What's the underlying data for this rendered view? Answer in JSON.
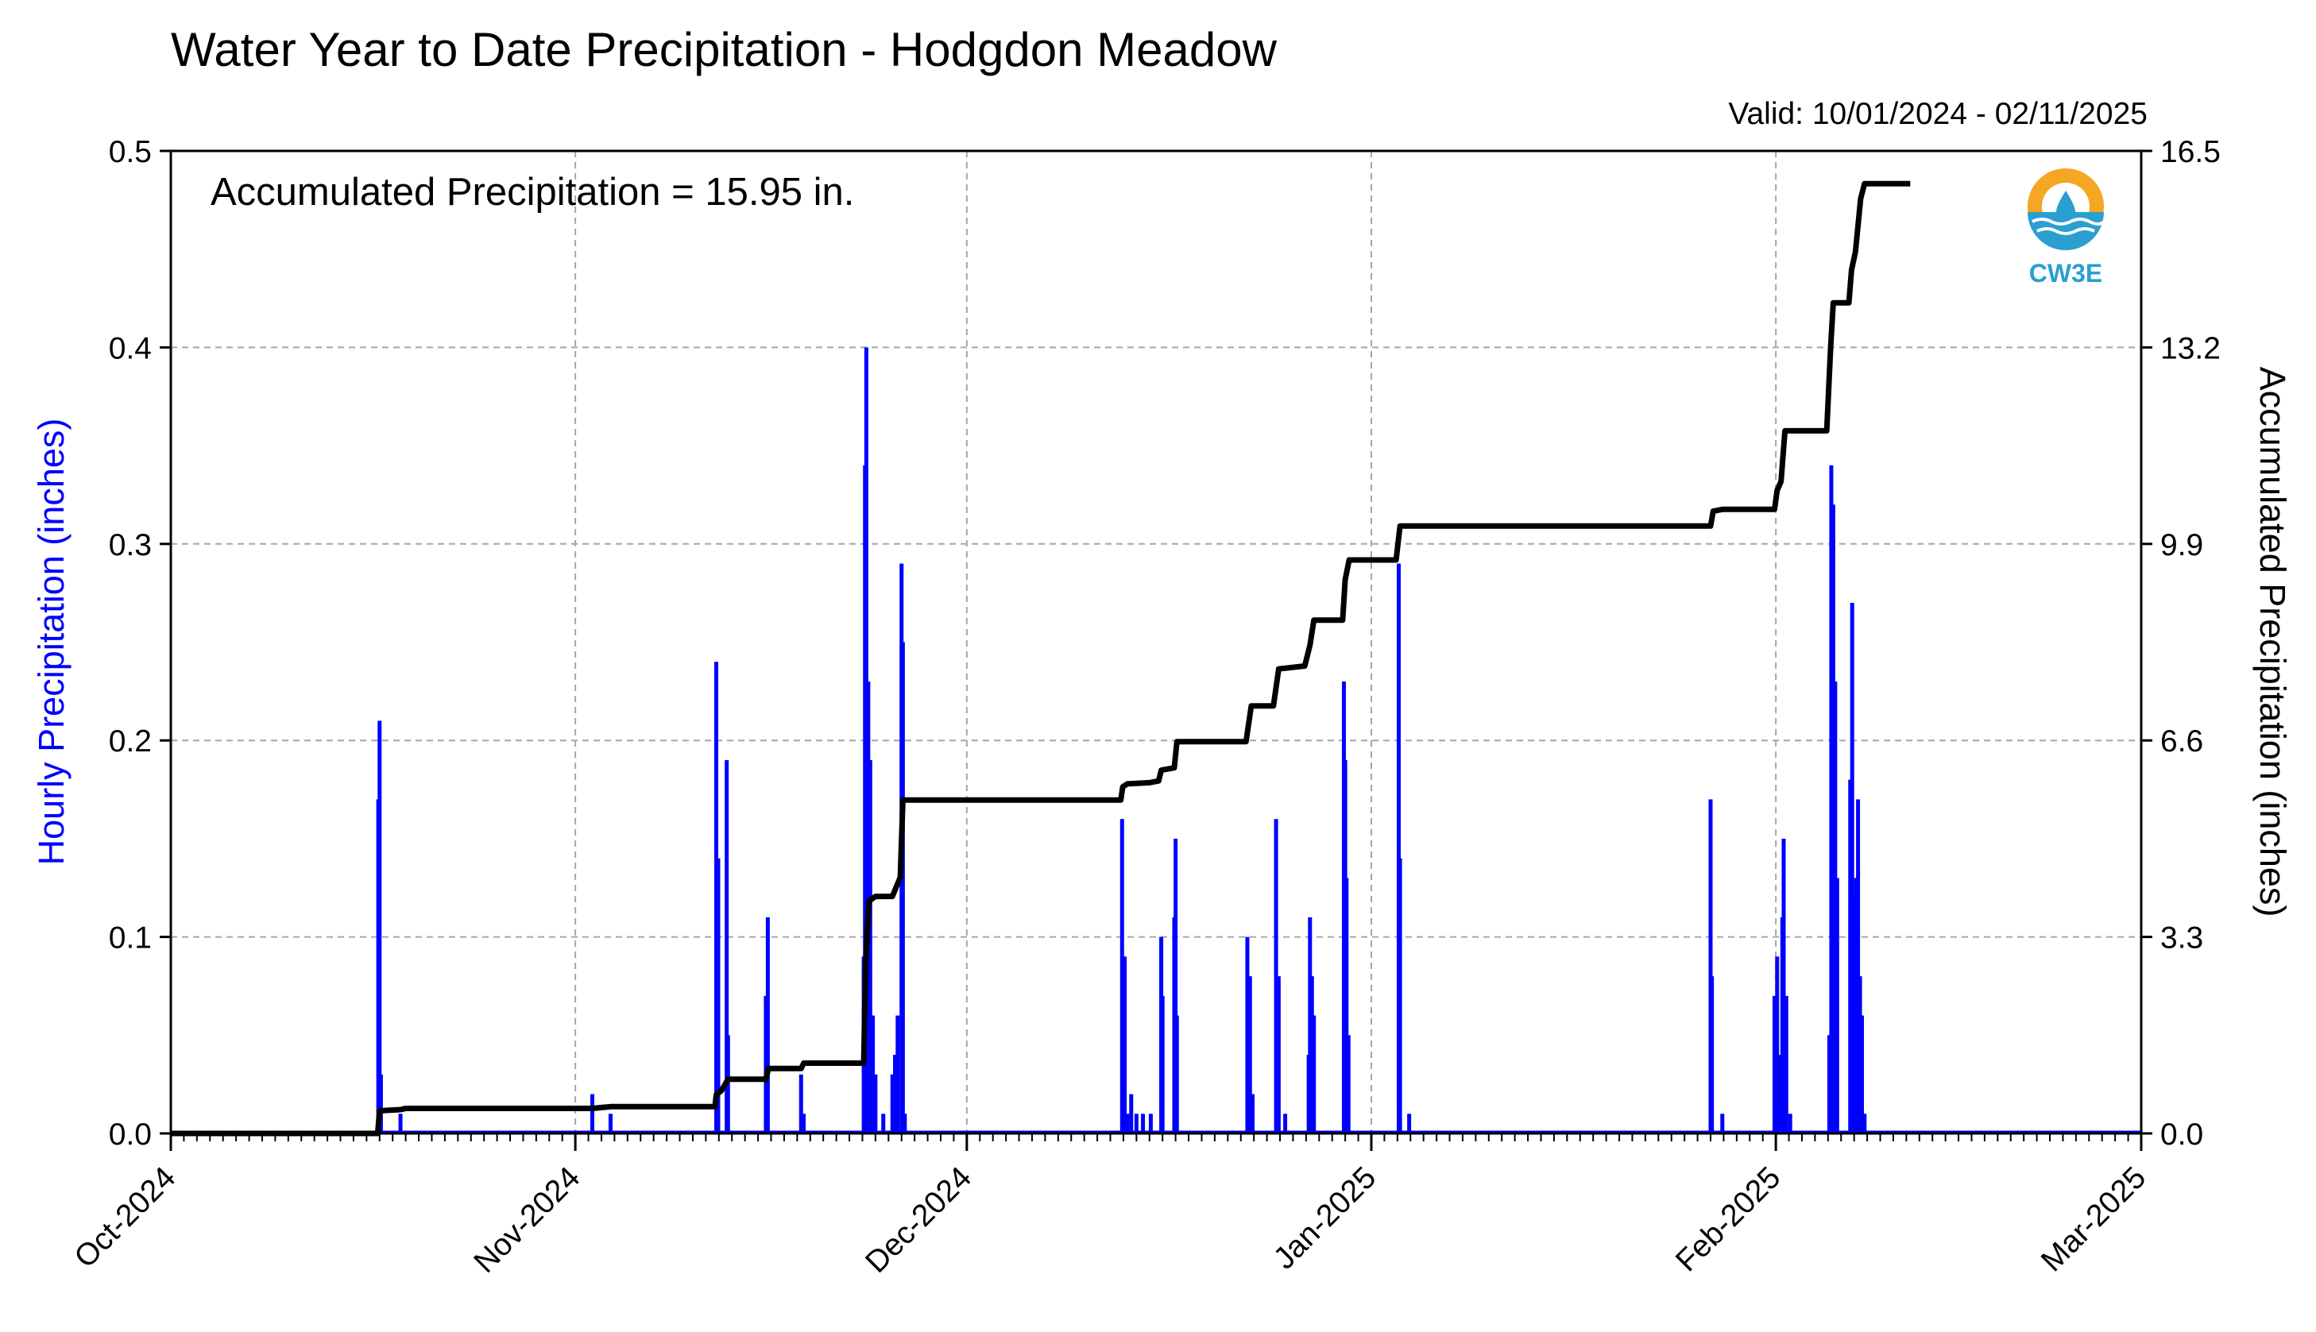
{
  "title": "Water Year to Date Precipitation - Hodgdon Meadow",
  "valid_text": "Valid: 10/01/2024 - 02/11/2025",
  "logo_text": "CW3E",
  "colors": {
    "hourly": "#0000ff",
    "accumulated": "#000000",
    "logo_orange": "#f5a623",
    "logo_blue": "#2a9fd0"
  },
  "chart_data": {
    "type": "bar+line",
    "annotation": "Accumulated Precipitation = 15.95 in.",
    "ylabel_left": "Hourly Precipitation (inches)",
    "ylabel_right": "Accumulated Precipitation (inches)",
    "ylim_left": [
      0,
      0.5
    ],
    "ylim_right": [
      0,
      16.5
    ],
    "yticks_left": [
      "0.0",
      "0.1",
      "0.2",
      "0.3",
      "0.4",
      "0.5"
    ],
    "yticks_right": [
      "0.0",
      "3.3",
      "6.6",
      "9.9",
      "13.2",
      "16.5"
    ],
    "xlim_days": [
      0,
      151
    ],
    "xticks": [
      {
        "label": "Oct-2024",
        "day": 0
      },
      {
        "label": "Nov-2024",
        "day": 31
      },
      {
        "label": "Dec-2024",
        "day": 61
      },
      {
        "label": "Jan-2025",
        "day": 92
      },
      {
        "label": "Feb-2025",
        "day": 123
      },
      {
        "label": "Mar-2025",
        "day": 151
      }
    ],
    "grid": true,
    "hourly_series": {
      "name": "Hourly Precipitation",
      "points": [
        [
          15.9,
          0.17
        ],
        [
          16.0,
          0.21
        ],
        [
          16.1,
          0.03
        ],
        [
          17.6,
          0.01
        ],
        [
          32.3,
          0.02
        ],
        [
          33.7,
          0.01
        ],
        [
          41.8,
          0.24
        ],
        [
          41.95,
          0.14
        ],
        [
          42.6,
          0.19
        ],
        [
          42.7,
          0.05
        ],
        [
          45.6,
          0.07
        ],
        [
          45.75,
          0.11
        ],
        [
          48.3,
          0.03
        ],
        [
          48.5,
          0.01
        ],
        [
          53.1,
          0.09
        ],
        [
          53.2,
          0.34
        ],
        [
          53.3,
          0.4
        ],
        [
          53.45,
          0.23
        ],
        [
          53.6,
          0.19
        ],
        [
          53.8,
          0.06
        ],
        [
          54.0,
          0.03
        ],
        [
          54.6,
          0.01
        ],
        [
          55.3,
          0.03
        ],
        [
          55.5,
          0.04
        ],
        [
          55.7,
          0.06
        ],
        [
          56.0,
          0.29
        ],
        [
          56.1,
          0.25
        ],
        [
          56.25,
          0.01
        ],
        [
          72.9,
          0.16
        ],
        [
          73.1,
          0.09
        ],
        [
          73.3,
          0.01
        ],
        [
          73.6,
          0.02
        ],
        [
          74.0,
          0.01
        ],
        [
          74.5,
          0.01
        ],
        [
          75.1,
          0.01
        ],
        [
          75.9,
          0.1
        ],
        [
          76.0,
          0.07
        ],
        [
          76.9,
          0.11
        ],
        [
          77.0,
          0.15
        ],
        [
          77.1,
          0.06
        ],
        [
          82.5,
          0.1
        ],
        [
          82.7,
          0.08
        ],
        [
          82.9,
          0.02
        ],
        [
          84.7,
          0.16
        ],
        [
          84.9,
          0.08
        ],
        [
          85.4,
          0.01
        ],
        [
          87.2,
          0.04
        ],
        [
          87.3,
          0.11
        ],
        [
          87.45,
          0.08
        ],
        [
          87.6,
          0.06
        ],
        [
          89.9,
          0.23
        ],
        [
          90.0,
          0.19
        ],
        [
          90.1,
          0.13
        ],
        [
          90.25,
          0.05
        ],
        [
          94.1,
          0.29
        ],
        [
          94.2,
          0.14
        ],
        [
          94.9,
          0.01
        ],
        [
          118.0,
          0.17
        ],
        [
          118.1,
          0.08
        ],
        [
          118.9,
          0.01
        ],
        [
          122.9,
          0.07
        ],
        [
          123.1,
          0.09
        ],
        [
          123.3,
          0.04
        ],
        [
          123.5,
          0.11
        ],
        [
          123.6,
          0.15
        ],
        [
          123.8,
          0.07
        ],
        [
          124.1,
          0.01
        ],
        [
          127.1,
          0.05
        ],
        [
          127.25,
          0.34
        ],
        [
          127.4,
          0.32
        ],
        [
          127.55,
          0.23
        ],
        [
          127.7,
          0.13
        ],
        [
          128.7,
          0.18
        ],
        [
          128.85,
          0.27
        ],
        [
          129.0,
          0.12
        ],
        [
          129.15,
          0.13
        ],
        [
          129.3,
          0.17
        ],
        [
          129.45,
          0.08
        ],
        [
          129.6,
          0.06
        ],
        [
          129.8,
          0.01
        ]
      ]
    },
    "accumulated_series": {
      "name": "Accumulated Precipitation",
      "points": [
        [
          0,
          0.0
        ],
        [
          15.85,
          0.0
        ],
        [
          16.0,
          0.38
        ],
        [
          17.6,
          0.4
        ],
        [
          18.0,
          0.42
        ],
        [
          32.3,
          0.42
        ],
        [
          33.7,
          0.45
        ],
        [
          41.7,
          0.45
        ],
        [
          41.8,
          0.65
        ],
        [
          42.2,
          0.72
        ],
        [
          42.7,
          0.91
        ],
        [
          45.6,
          0.91
        ],
        [
          45.8,
          1.09
        ],
        [
          48.3,
          1.09
        ],
        [
          48.5,
          1.18
        ],
        [
          53.1,
          1.18
        ],
        [
          53.25,
          2.9
        ],
        [
          53.5,
          3.9
        ],
        [
          54.0,
          3.98
        ],
        [
          55.3,
          3.98
        ],
        [
          55.9,
          4.3
        ],
        [
          56.1,
          5.6
        ],
        [
          72.8,
          5.6
        ],
        [
          72.95,
          5.82
        ],
        [
          73.3,
          5.87
        ],
        [
          75.0,
          5.89
        ],
        [
          75.7,
          5.92
        ],
        [
          75.9,
          6.1
        ],
        [
          76.9,
          6.14
        ],
        [
          77.1,
          6.58
        ],
        [
          82.4,
          6.58
        ],
        [
          82.8,
          7.18
        ],
        [
          84.5,
          7.18
        ],
        [
          84.9,
          7.8
        ],
        [
          86.9,
          7.85
        ],
        [
          87.3,
          8.2
        ],
        [
          87.6,
          8.62
        ],
        [
          89.8,
          8.62
        ],
        [
          90.0,
          9.3
        ],
        [
          90.3,
          9.63
        ],
        [
          93.9,
          9.63
        ],
        [
          94.2,
          10.2
        ],
        [
          118.0,
          10.2
        ],
        [
          118.2,
          10.45
        ],
        [
          118.9,
          10.48
        ],
        [
          122.9,
          10.48
        ],
        [
          123.1,
          10.8
        ],
        [
          123.4,
          10.95
        ],
        [
          123.7,
          11.8
        ],
        [
          126.9,
          11.8
        ],
        [
          127.2,
          13.2
        ],
        [
          127.4,
          13.95
        ],
        [
          128.6,
          13.95
        ],
        [
          128.8,
          14.5
        ],
        [
          129.1,
          14.8
        ],
        [
          129.5,
          15.7
        ],
        [
          129.8,
          15.95
        ],
        [
          133.3,
          15.95
        ]
      ]
    }
  }
}
